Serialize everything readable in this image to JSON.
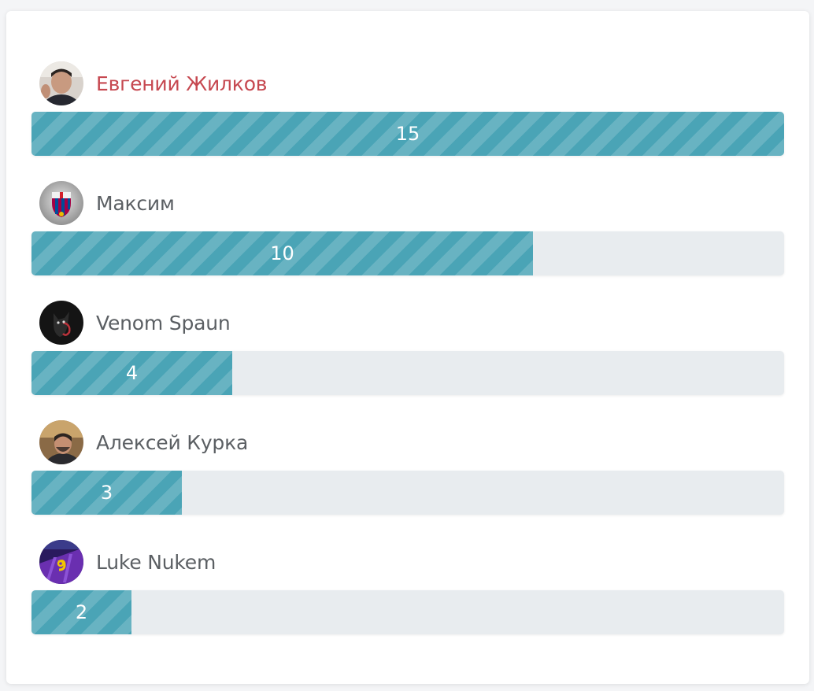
{
  "leaderboard": {
    "max_value": 15,
    "entries": [
      {
        "name": "Евгений Жилков",
        "value": 15,
        "value_label": "15",
        "highlight": true,
        "avatar": "user-photo-icon"
      },
      {
        "name": "Максим",
        "value": 10,
        "value_label": "10",
        "highlight": false,
        "avatar": "club-crest-icon"
      },
      {
        "name": "Venom Spaun",
        "value": 4,
        "value_label": "4",
        "highlight": false,
        "avatar": "dark-creature-icon"
      },
      {
        "name": "Алексей Курка",
        "value": 3,
        "value_label": "3",
        "highlight": false,
        "avatar": "user-photo-icon"
      },
      {
        "name": "Luke Nukem",
        "value": 2,
        "value_label": "2",
        "highlight": false,
        "avatar": "jersey-number-icon"
      }
    ]
  },
  "colors": {
    "bar_fill": "#4aa4b6",
    "track": "#e8ecef",
    "highlight_name": "#c64850",
    "name": "#5b5f63"
  }
}
